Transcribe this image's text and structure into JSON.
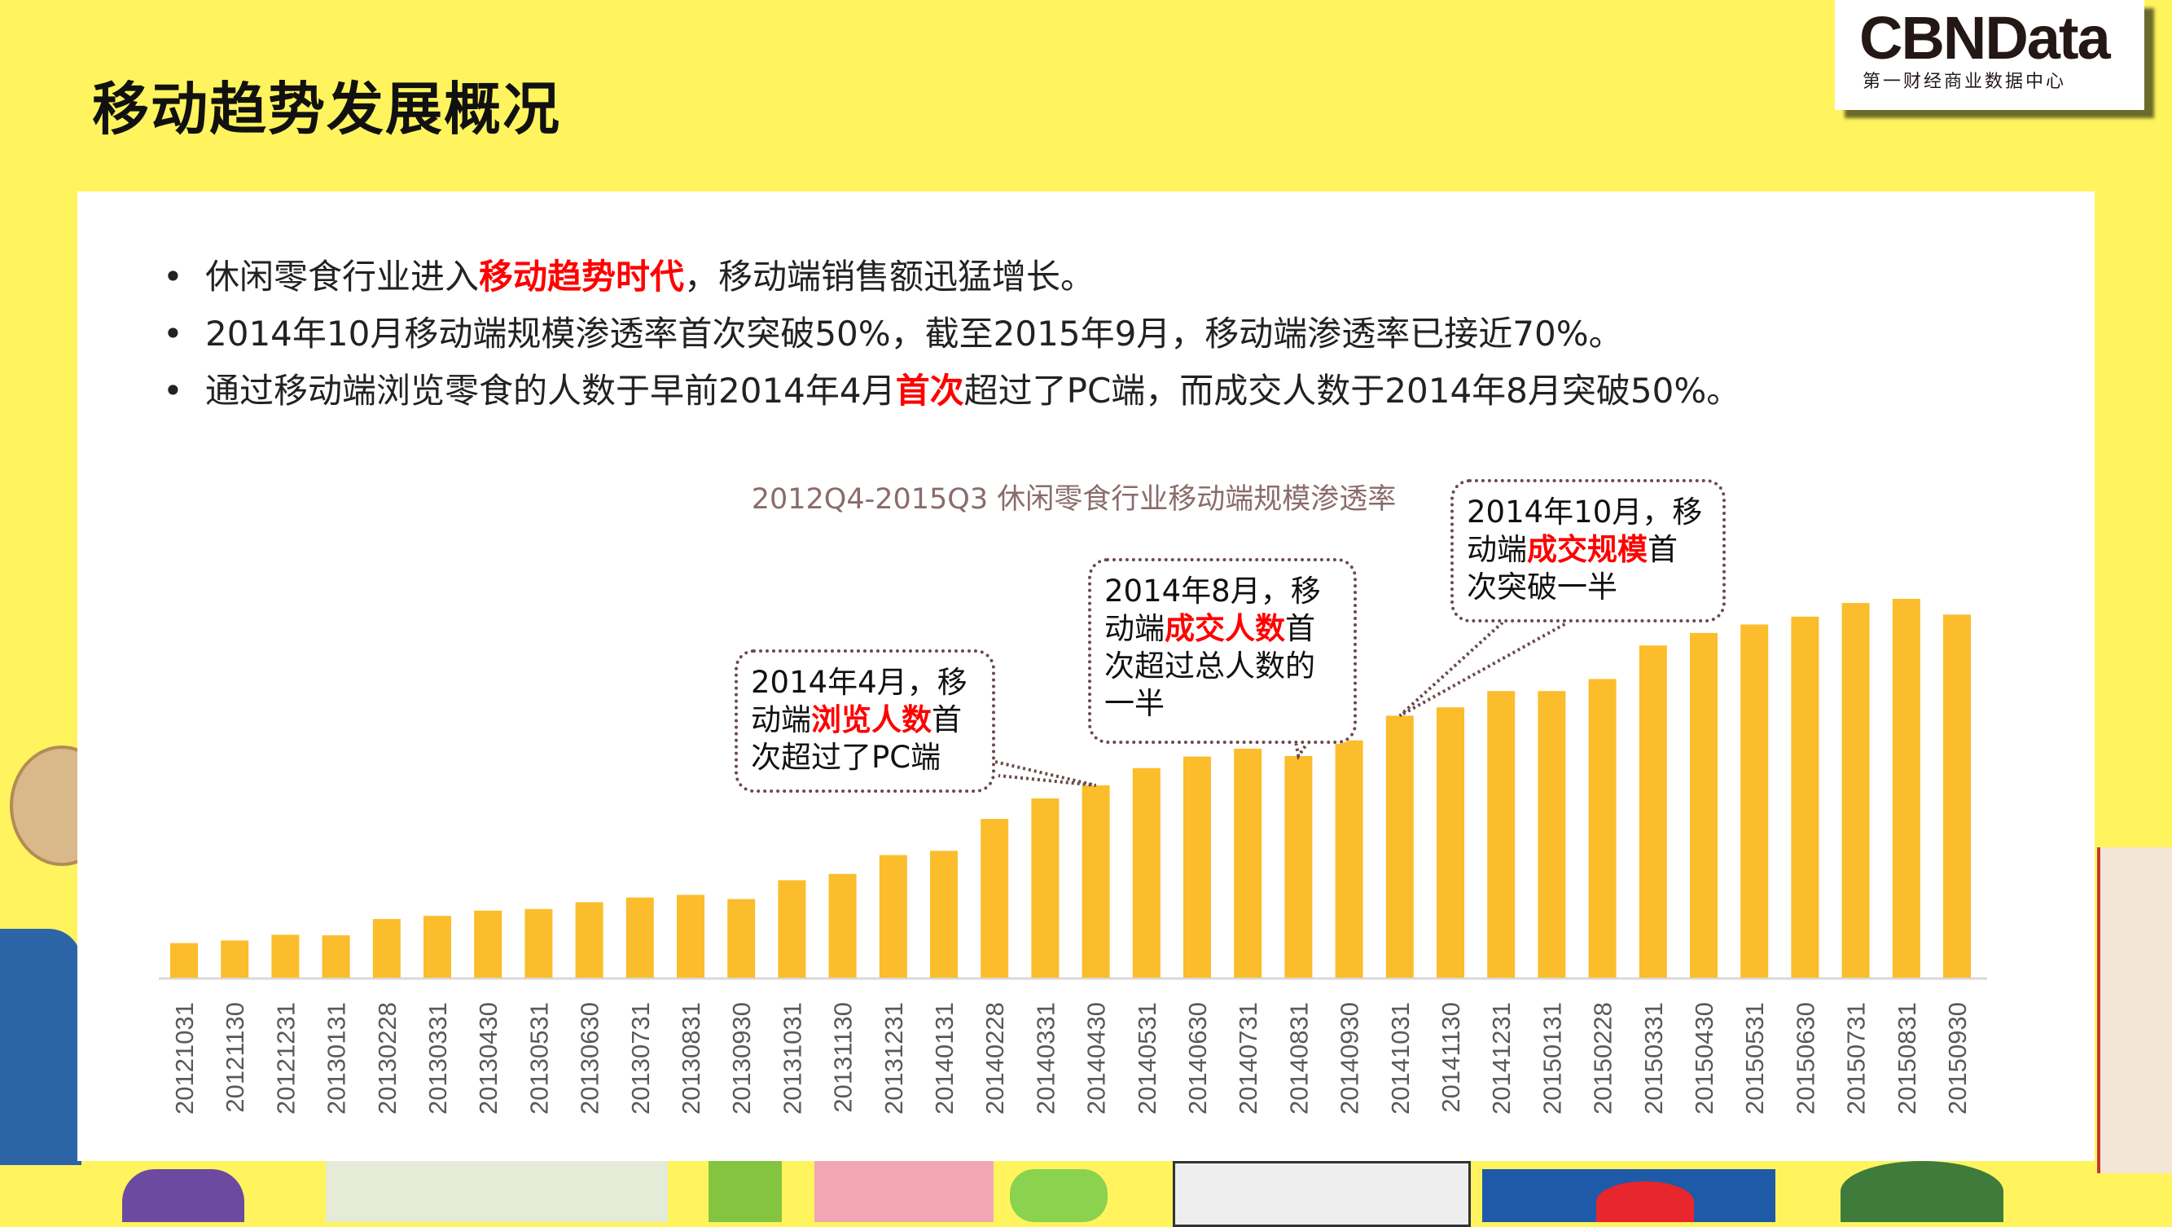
{
  "page_title": "移动趋势发展概况",
  "logo": {
    "brand": "CBNData",
    "subtitle": "第一财经商业数据中心"
  },
  "bullets": [
    [
      {
        "t": "休闲零食行业进入",
        "h": false
      },
      {
        "t": "移动趋势时代",
        "h": true
      },
      {
        "t": "，移动端销售额迅猛增长。",
        "h": false
      }
    ],
    [
      {
        "t": "2014年10月移动端规模渗透率首次突破50%，截至2015年9月，移动端渗透率已接近70%。",
        "h": false
      }
    ],
    [
      {
        "t": "通过移动端浏览零食的人数于早前2014年4月",
        "h": false
      },
      {
        "t": "首次",
        "h": true
      },
      {
        "t": "超过了PC端，而成交人数于2014年8月突破50%。",
        "h": false
      }
    ]
  ],
  "bullet_symbol": "•",
  "callouts": [
    {
      "line1": "2014年4月，移",
      "pre": "动端",
      "hl": "浏览人数",
      "post": "首",
      "line3": "次超过了PC端",
      "line4": ""
    },
    {
      "line1": "2014年8月，移",
      "pre": "动端",
      "hl": "成交人数",
      "post": "首",
      "line3": "次超过总人数的",
      "line4": "一半"
    },
    {
      "line1": "2014年10月，移",
      "pre": "动端",
      "hl": "成交规模",
      "post": "首",
      "line3": "次突破一半",
      "line4": ""
    }
  ],
  "colors": {
    "bar": "#fbbd2c",
    "background": "#fff45e",
    "highlight": "#ff0000"
  },
  "chart_data": {
    "type": "bar",
    "title": "2012Q4-2015Q3 休闲零食行业移动端规模渗透率",
    "xlabel": "",
    "ylabel": "",
    "unit": "%",
    "ylim": [
      0,
      75
    ],
    "grid": false,
    "categories": [
      "20121031",
      "20121130",
      "20121231",
      "20130131",
      "20130228",
      "20130331",
      "20130430",
      "20130531",
      "20130630",
      "20130731",
      "20130831",
      "20130930",
      "20131031",
      "20131130",
      "20131231",
      "20140131",
      "20140228",
      "20140331",
      "20140430",
      "20140531",
      "20140630",
      "20140731",
      "20140831",
      "20140930",
      "20141031",
      "20141130",
      "20141231",
      "20150131",
      "20150228",
      "20150331",
      "20150430",
      "20150531",
      "20150630",
      "20150731",
      "20150831",
      "20150930"
    ],
    "values": [
      6.6,
      7.1,
      8.2,
      8.1,
      11.2,
      11.8,
      12.8,
      13.1,
      14.4,
      15.3,
      15.8,
      15.0,
      18.6,
      19.8,
      23.4,
      24.2,
      30.3,
      34.2,
      36.7,
      40.0,
      42.2,
      43.7,
      42.3,
      45.3,
      50.0,
      51.6,
      54.7,
      54.7,
      57.0,
      63.4,
      65.8,
      67.4,
      68.9,
      71.5,
      72.3,
      69.3
    ]
  }
}
